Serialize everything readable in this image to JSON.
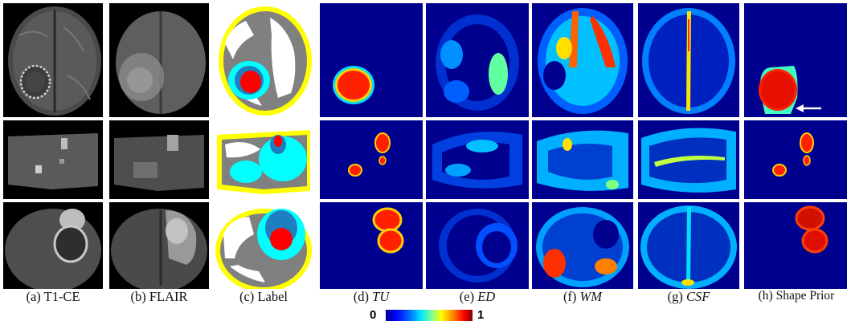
{
  "captions": [
    {
      "prefix": "(a)",
      "text": "T1-CE",
      "italic": false
    },
    {
      "prefix": "(b)",
      "text": "FLAIR",
      "italic": false
    },
    {
      "prefix": "(c)",
      "text": "Label",
      "italic": false
    },
    {
      "prefix": "(d)",
      "text": "TU",
      "italic": true
    },
    {
      "prefix": "(e)",
      "text": "ED",
      "italic": true
    },
    {
      "prefix": "(f)",
      "text": "WM",
      "italic": true
    },
    {
      "prefix": "(g)",
      "text": "CSF",
      "italic": true
    },
    {
      "prefix": "(h)",
      "text": "Shape Prior",
      "italic": false
    }
  ],
  "colorbar": {
    "min_label": "0",
    "max_label": "1"
  },
  "colors": {
    "heatmap_background": "#00008f",
    "label_gray": "#808080",
    "label_yellow": "#ffff00",
    "label_cyan": "#00ffff",
    "label_blue": "#1e7fc0",
    "label_red": "#ff0000",
    "arrow": "#ffffff"
  },
  "annotations": {
    "arrow_panel": "h",
    "arrow_row": 1
  }
}
